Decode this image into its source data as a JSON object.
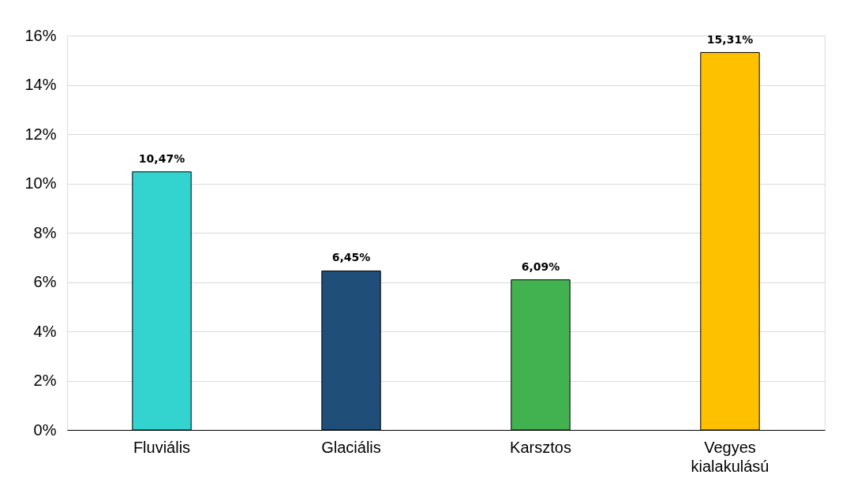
{
  "chart_data": {
    "type": "bar",
    "categories": [
      "Fluviális",
      "Glaciális",
      "Karsztos",
      "Vegyes kialakulású"
    ],
    "values": [
      10.47,
      6.45,
      6.09,
      15.31
    ],
    "colors": [
      "#33d4cf",
      "#1f4e78",
      "#41b24f",
      "#ffc000"
    ],
    "value_labels": [
      "10,47%",
      "6,45%",
      "6,09%",
      "15,31%"
    ],
    "ylim": [
      0,
      16
    ],
    "yticks": [
      {
        "value": 0,
        "label": "0%"
      },
      {
        "value": 2,
        "label": "2%"
      },
      {
        "value": 4,
        "label": "4%"
      },
      {
        "value": 6,
        "label": "6%"
      },
      {
        "value": 8,
        "label": "8%"
      },
      {
        "value": 10,
        "label": "10%"
      },
      {
        "value": 12,
        "label": "12%"
      },
      {
        "value": 14,
        "label": "14%"
      },
      {
        "value": 16,
        "label": "16%"
      }
    ],
    "grid": "y"
  }
}
